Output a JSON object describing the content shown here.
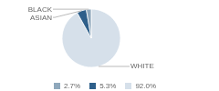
{
  "chart_data": {
    "type": "pie",
    "categories": [
      "WHITE",
      "ASIAN",
      "BLACK"
    ],
    "values": [
      92.0,
      5.3,
      2.7
    ],
    "value_labels": [
      "92.0%",
      "5.3%",
      "2.7%"
    ],
    "colors": [
      "#d6e0ea",
      "#2e5f8a",
      "#8fa8bc"
    ],
    "legend": "bottom"
  }
}
